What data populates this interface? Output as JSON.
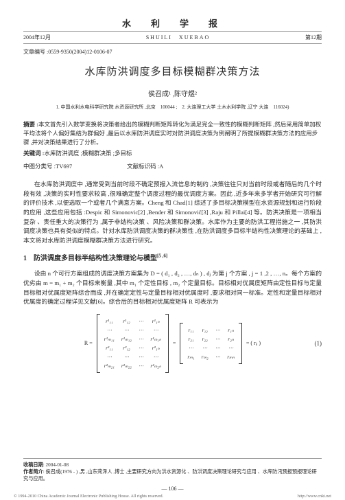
{
  "header": {
    "date_cn": "2004年12月",
    "journal_cn": "水　利　学　报",
    "journal_en": "SHUILI　XUEBAO",
    "issue": "第12期"
  },
  "article_id": "文章编号 :0559-9350(2004)12-0106-07",
  "title_cn": "水库防洪调度多目标模糊群决策方法",
  "authors": "侯召成¹ ,陈守煜²",
  "affiliation": "1. 中国水利水电科学研究院  水资源研究所 ,北京　100044 ;　2. 大连理工大学  土木水利学院 ,辽宁  大连　116024)",
  "abstract_label": "摘要 :",
  "abstract_text": "本文首先引入数学变换将决策者给出的模糊判断矩阵转化为满足完全一致性的模糊判断矩阵 ,然后采用简单加权平均法将个人偏好集结为群偏好 ,最后以水库防洪调度实时对防洪调度决策为例阐明了所提模糊群决策方法的应用步骤 ,并对决策结果进行了分析。",
  "keywords_label": "关键词 :",
  "keywords_text": "水库防洪调度 ;模糊群决策 ;多目标",
  "class_cn_label": "中图分类号 :",
  "class_cn": "TV697",
  "doc_code_label": "文献标识码 :",
  "doc_code": "A",
  "para1": "在水库防洪调度中 ,通常受到当前时段不确定预报入流信息的制约 ,决策往往只对当前时段或者随后的几个时段有效 ,决策的实时性要求较高 ,很难确定整个调度过程的最优调度方案。因此 ,近多年来多学者开始研究可行解的评价技术 ,以便选取一个或者几个满意方案。Cheng 和 Chad[1] 综述了多目标决策模型在水资源规划和运行阶段的应用 ,这些应用包括 :Despic 和 Simonovic[2] ,Bender 和 Simonović[3] ,Raju 和 Pillai[4] 等。防洪决策是一项相当复杂 、责任重大的决策行为 ,属于非结构决策 、风险决策和群决策。水库作为主要的防洪工程措施之一 ,其防洪调度决策也具有类似的特点。针对水库防洪调度决策的群决策性 ,在防洪调度多目标半结构性决策理论的基础上 ,本文将对水库防洪调度模糊群决策方法进行研究。",
  "sec1_title": "1　防洪调度多目标半结构性决策理论与模型",
  "sec1_ref": "[5 ,6]",
  "para2": "设由 n 个可行方案组成的调度决策方案集为 D = ( d₁ , d₂ , …, dₙ ) , dⱼ 为第 j 个方案 , j = 1 ,2 , …, n。每个方案的优劣由 m = m₁ + m₂ 个目标来衡量 ,其中 m₁ 个定性目标 , m₂ 个定量目标。目标相对优属度矩阵由定性目标与定量目标相对优属度矩阵综合而成 ,并在确定定性与定量目标相对优属度时 ,要求相对同一标准。定性和定量目标相对优属度的确定过程详见文献[6]。综合后的目标相对优属度矩阵 R 可表示为",
  "matrix_left": [
    [
      "r¹₁₁",
      "r¹₁₂",
      "⋯",
      "r¹₁ₙ"
    ],
    [
      "⋯",
      "⋯",
      "⋯",
      "⋯"
    ],
    [
      "r¹ₘ₁₁",
      "r¹ₘ₁₂",
      "⋯",
      "r¹ₘ₁ₙ"
    ],
    [
      "r²₁₁",
      "r²₁₂",
      "⋯",
      "r²₁ₙ"
    ],
    [
      "⋯",
      "⋯",
      "⋯",
      "⋯"
    ],
    [
      "r²ₘ₂₁",
      "r²ₘ₂₂",
      "⋯",
      "r²ₘ₂ₙ"
    ]
  ],
  "matrix_right": [
    [
      "r₁₁",
      "r₁₂",
      "⋯",
      "r₁ₙ"
    ],
    [
      "r₂₁",
      "r₂₂",
      "⋯",
      "r₂ₙ"
    ],
    [
      "⋯",
      "⋯",
      "⋯",
      "⋯"
    ],
    [
      "rₘ₁",
      "rₘ₂",
      "⋯",
      "rₘₙ"
    ]
  ],
  "eq_r": "R =",
  "eq_eq": "=",
  "eq_tail": "= ( rᵢⱼ )",
  "eq_num": "(1)",
  "footer": {
    "recv_label": "收稿日期",
    "recv_date": ": 2004-01-08",
    "author_label": "作者简介",
    "author_bio": ": 侯召成(1976 - ) ,男 ,山东菏泽人 ,博士 ,主要研究方向为洪水资源化 、防洪调度决策理论研究与应用 、水库防汛预报预报理论研究与应用。"
  },
  "page_num": "—  106  —",
  "copyright_left": "© 1994-2010 China Academic Journal Electronic Publishing House. All rights reserved.",
  "copyright_right": "http://www.cnki.net"
}
